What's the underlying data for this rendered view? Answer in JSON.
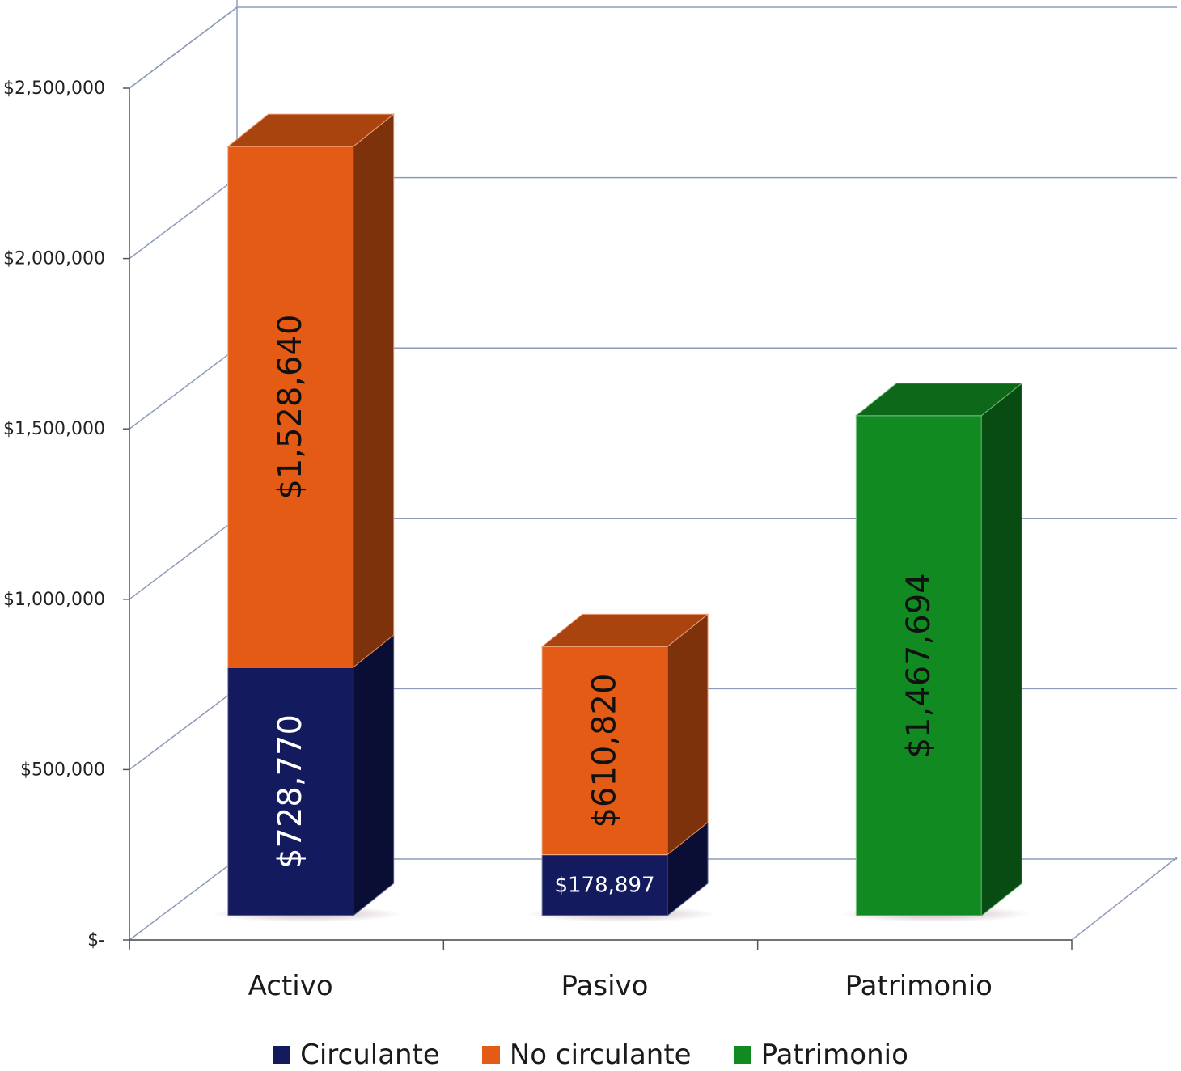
{
  "chart_data": {
    "type": "bar",
    "stacked": true,
    "three_d": true,
    "categories": [
      "Activo",
      "Pasivo",
      "Patrimonio"
    ],
    "series": [
      {
        "name": "Circulante",
        "values": [
          728770,
          178897,
          null
        ],
        "labels": [
          "$728,770",
          "$178,897",
          ""
        ],
        "color": "#141A5E"
      },
      {
        "name": "No circulante",
        "values": [
          1528640,
          610820,
          null
        ],
        "labels": [
          "$1,528,640",
          "$610,820",
          ""
        ],
        "color": "#E35B14"
      },
      {
        "name": "Patrimonio",
        "values": [
          null,
          null,
          1467694
        ],
        "labels": [
          "",
          "",
          "$1,467,694"
        ],
        "color": "#118A22"
      }
    ],
    "y_ticks": [
      "$-",
      "$500,000",
      "$1,000,000",
      "$1,500,000",
      "$2,000,000",
      "$2,500,000"
    ],
    "ylim": [
      0,
      2500000
    ],
    "grid": true,
    "legend_position": "bottom"
  }
}
